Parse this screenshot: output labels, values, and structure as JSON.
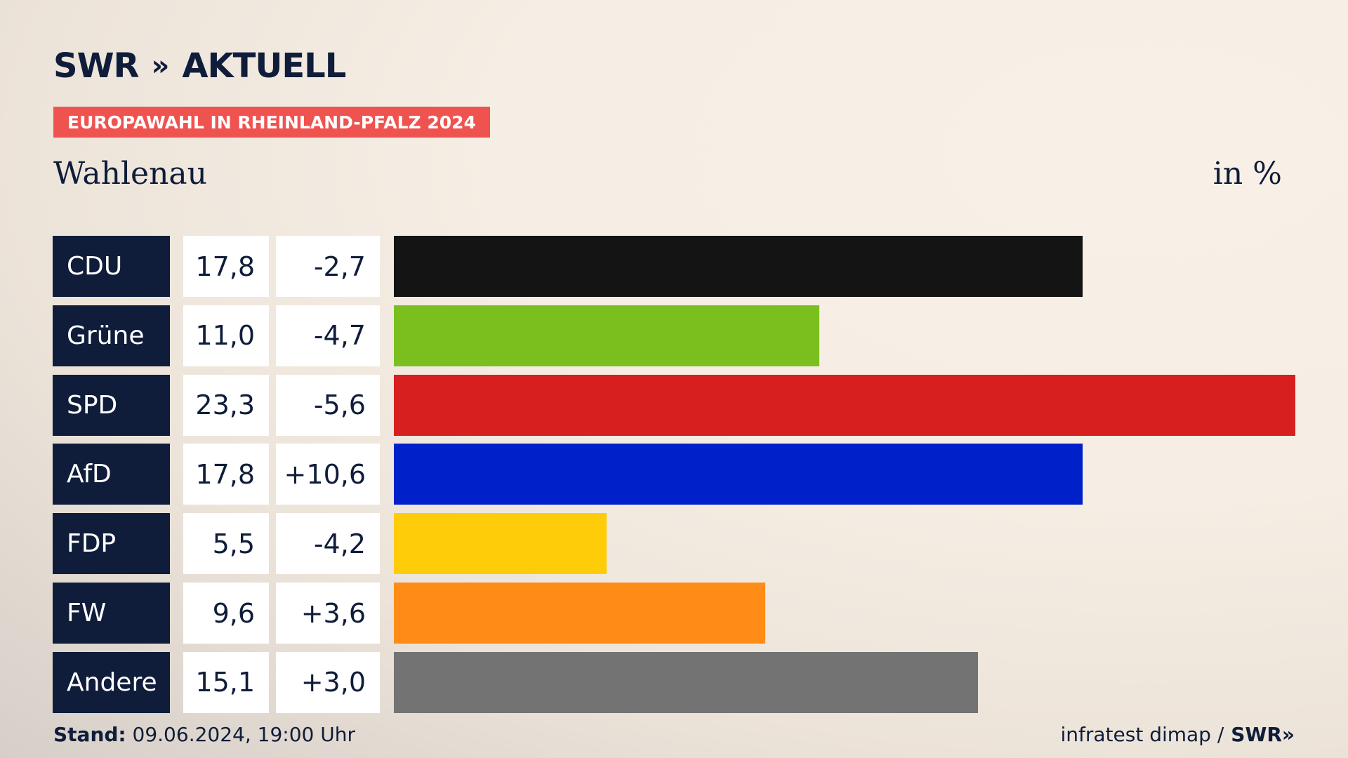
{
  "brand": {
    "logo_text": "SWR",
    "logo_chevrons": "»",
    "logo_suffix": "AKTUELL",
    "colors": {
      "navy": "#0f1d3a",
      "badge": "#ef5350"
    }
  },
  "badge_label": "EUROPAWAHL IN RHEINLAND-PFALZ 2024",
  "region": "Wahlenau",
  "unit": "in %",
  "footer": {
    "stand_label": "Stand:",
    "stand_value": "09.06.2024, 19:00 Uhr",
    "source": "infratest dimap /",
    "source_logo": "SWR»"
  },
  "chart_data": {
    "type": "bar",
    "orientation": "horizontal",
    "categories": [
      "CDU",
      "Grüne",
      "SPD",
      "AfD",
      "FDP",
      "FW",
      "Andere"
    ],
    "values": [
      17.8,
      11.0,
      23.3,
      17.8,
      5.5,
      9.6,
      15.1
    ],
    "values_label": [
      "17,8",
      "11,0",
      "23,3",
      "17,8",
      "5,5",
      "9,6",
      "15,1"
    ],
    "diffs": [
      -2.7,
      -4.7,
      -5.6,
      10.6,
      -4.2,
      3.6,
      3.0
    ],
    "diffs_label": [
      "-2,7",
      "-4,7",
      "-5,6",
      "+10,6",
      "-4,2",
      "+3,6",
      "+3,0"
    ],
    "colors": [
      "#141414",
      "#7abf1e",
      "#d71f1f",
      "#0021c9",
      "#ffcc0a",
      "#ff8c16",
      "#737373"
    ],
    "xlim": [
      0,
      23.3
    ]
  }
}
